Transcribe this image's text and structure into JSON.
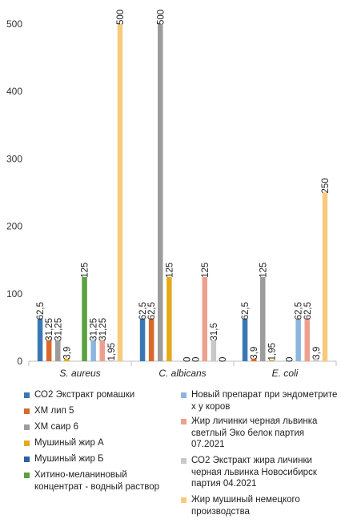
{
  "chart_data": {
    "type": "bar",
    "categories": [
      "S. aureus",
      "C. albicans",
      "E. coli"
    ],
    "ylim": [
      0,
      500
    ],
    "yticks": [
      0,
      100,
      200,
      300,
      400,
      500
    ],
    "ytick_labels": [
      "0",
      "100",
      "200",
      "300",
      "400",
      "500"
    ],
    "grid": false,
    "legend_position": "bottom",
    "series": [
      {
        "name": "СО2 Экстракт ромашки",
        "color": "#3a77b5",
        "values": [
          62.5,
          62.5,
          62.5
        ],
        "labels": [
          "62,5",
          "62,5",
          "62,5"
        ]
      },
      {
        "name": "ХМ лип 5",
        "color": "#d9692a",
        "values": [
          31.25,
          62.5,
          3.9
        ],
        "labels": [
          "31,25",
          "62,5",
          "3,9"
        ]
      },
      {
        "name": "ХМ саир 6",
        "color": "#9c9c9c",
        "values": [
          31.25,
          500,
          125
        ],
        "labels": [
          "31,25",
          "500",
          "125"
        ]
      },
      {
        "name": "Мушиный жир А",
        "color": "#e5a91b",
        "values": [
          3.9,
          125,
          1.95
        ],
        "labels": [
          "3,9",
          "125",
          "1,95"
        ]
      },
      {
        "name": "Мушиный жир Б",
        "color": "#2e5ea8",
        "values": [
          0,
          0,
          0
        ],
        "labels": [
          "",
          "",
          ""
        ]
      },
      {
        "name": "Хитино-меланиновый концентрат - водный раствор",
        "color": "#5aa13f",
        "values": [
          125,
          0,
          0
        ],
        "labels": [
          "125",
          "0",
          "0"
        ]
      },
      {
        "name": "Новый препарат при эндометрите х у коров",
        "color": "#8db6de",
        "values": [
          31.25,
          0,
          62.5
        ],
        "labels": [
          "31,25",
          "0",
          "62,5"
        ]
      },
      {
        "name": "Жир личинки черная львинка светлый Эко белок партия 07.2021",
        "color": "#eea08e",
        "values": [
          31.25,
          125,
          62.5
        ],
        "labels": [
          "31,25",
          "125",
          "62,5"
        ]
      },
      {
        "name": "СО2 Экстракт жира личинки черная львинка Новосибирск партия 04.2021",
        "color": "#c8c8c8",
        "values": [
          1.95,
          31.5,
          3.9
        ],
        "labels": [
          "1,95",
          "31,5",
          "3,9"
        ]
      },
      {
        "name": "Жир мушиный немецкого производства",
        "color": "#f8ca7e",
        "values": [
          500,
          0,
          250
        ],
        "labels": [
          "500",
          "0",
          "250"
        ]
      }
    ]
  }
}
